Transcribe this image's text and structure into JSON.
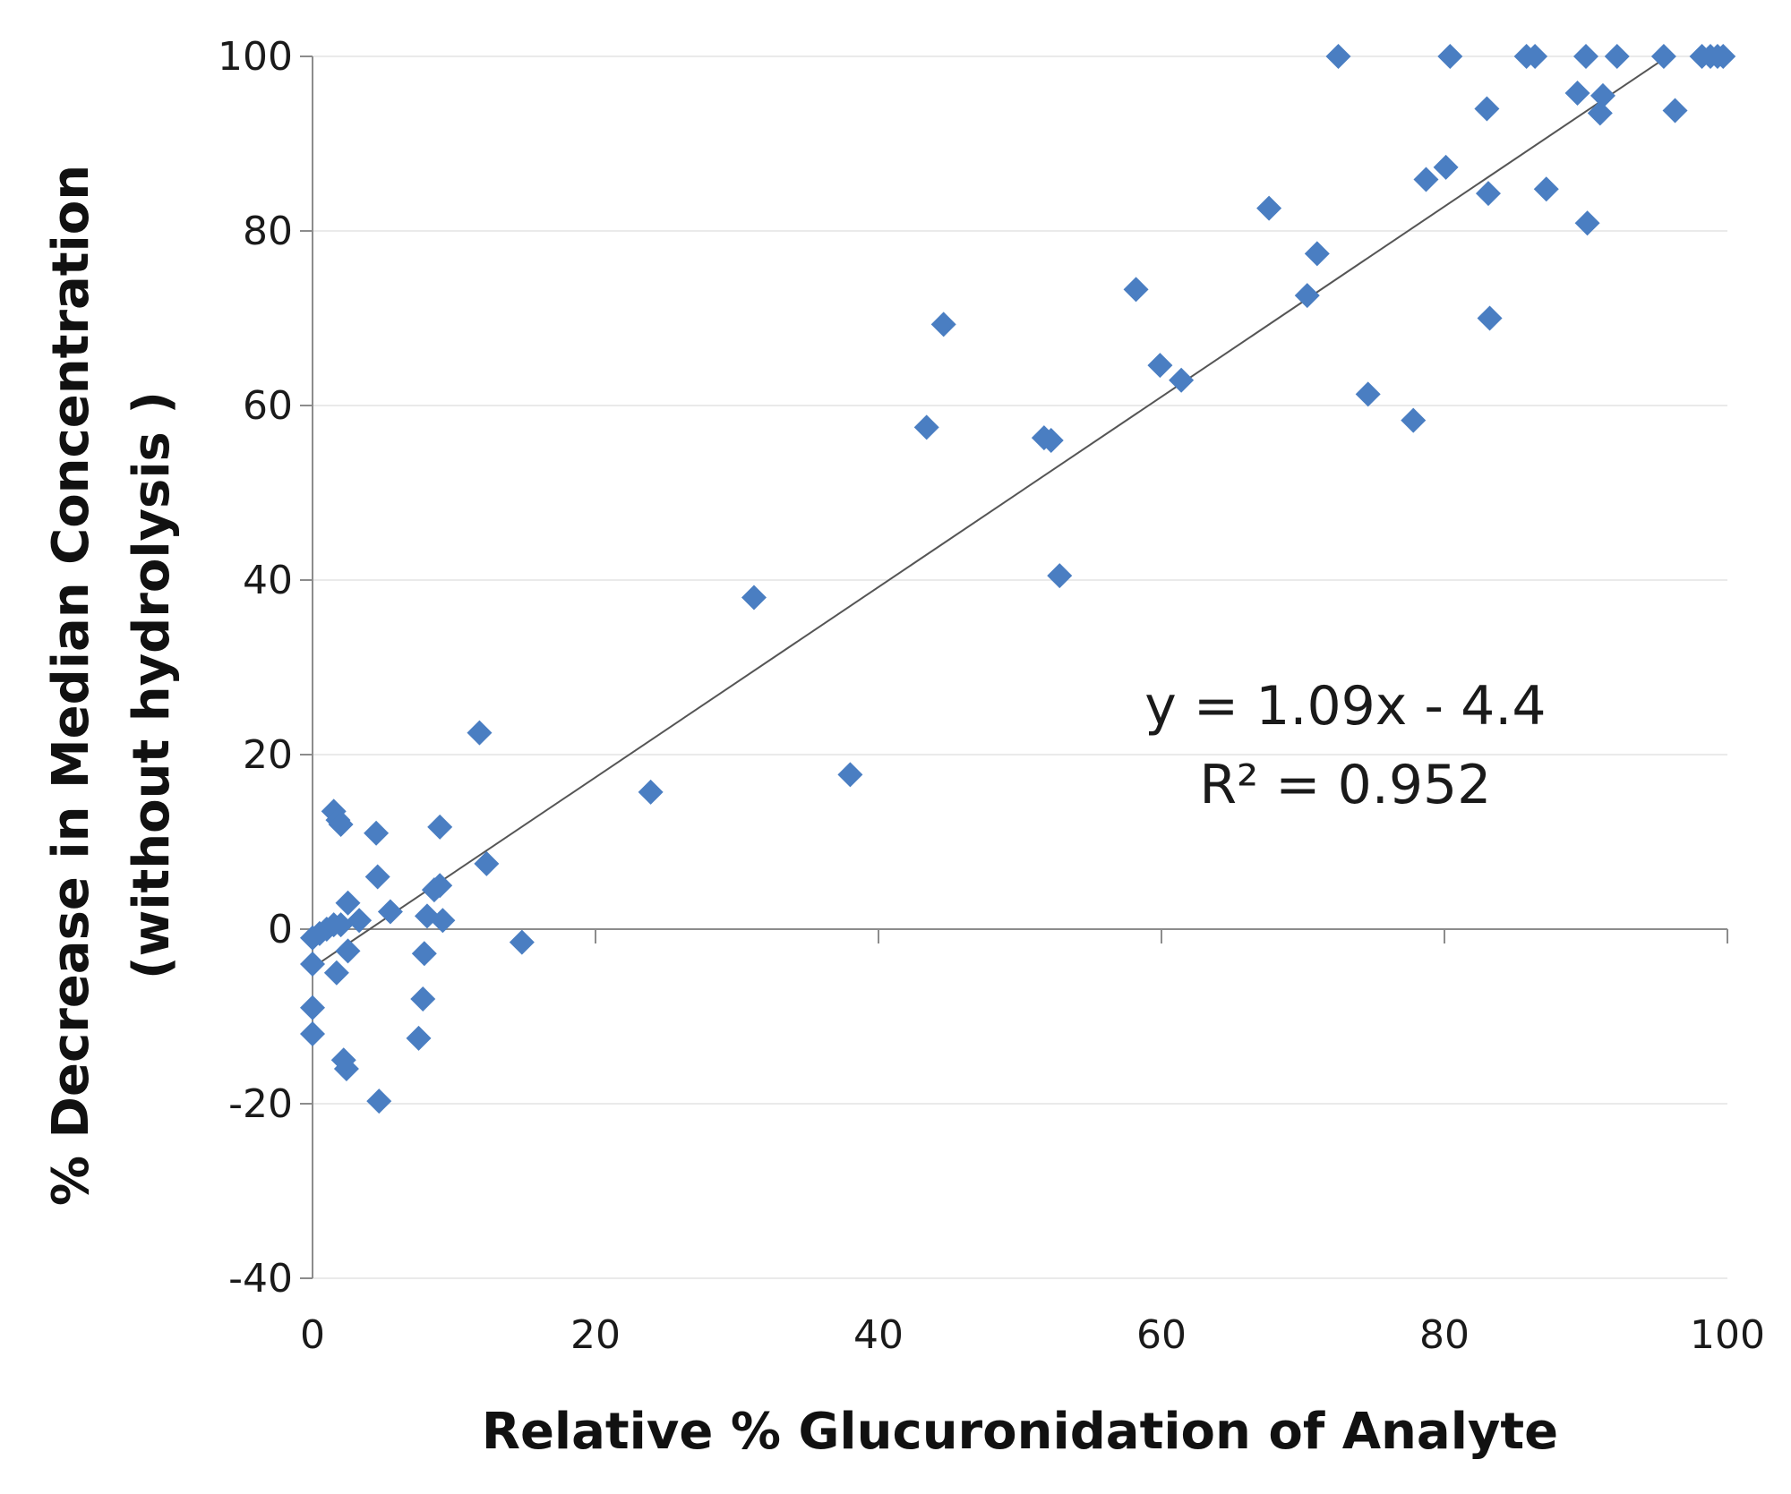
{
  "chart_data": {
    "type": "scatter",
    "xlabel": "Relative % Glucuronidation of Analyte",
    "ylabel": "% Decrease in Median Concentration",
    "ylabel_line2": "(without  hydrolysis )",
    "xlim": [
      0,
      100
    ],
    "ylim": [
      -40,
      100
    ],
    "x_ticks": [
      0,
      20,
      40,
      60,
      80,
      100
    ],
    "y_ticks": [
      -40,
      -20,
      0,
      20,
      40,
      60,
      80,
      100
    ],
    "x_tick_labels": [
      "0",
      "20",
      "40",
      "60",
      "80",
      "100"
    ],
    "y_tick_labels": [
      "-40",
      "-20",
      "0",
      "20",
      "40",
      "60",
      "80",
      "100"
    ],
    "grid": "horizontal",
    "marker": "diamond",
    "marker_color": "#4a7ec2",
    "trendline_color": "#555555",
    "trendline": {
      "slope": 1.09,
      "intercept": -4.4,
      "x_range": [
        0,
        95.5
      ]
    },
    "annotation": {
      "equation": "y = 1.09x - 4.4",
      "r_squared": "R² = 0.952",
      "anchor": [
        73,
        23.5
      ]
    },
    "points": [
      [
        0,
        -1
      ],
      [
        0.5,
        -0.5
      ],
      [
        1,
        0
      ],
      [
        1.5,
        0.5
      ],
      [
        2,
        0.5
      ],
      [
        0,
        -4
      ],
      [
        0,
        -9
      ],
      [
        0,
        -12
      ],
      [
        1.5,
        13.5
      ],
      [
        1.8,
        12.5
      ],
      [
        2,
        12
      ],
      [
        1.7,
        -5
      ],
      [
        2.5,
        -2.5
      ],
      [
        2.5,
        3
      ],
      [
        3.3,
        1
      ],
      [
        2.2,
        -15
      ],
      [
        2.4,
        -16
      ],
      [
        4.5,
        11
      ],
      [
        4.6,
        6
      ],
      [
        5.5,
        2
      ],
      [
        4.7,
        -19.7
      ],
      [
        7.5,
        -12.5
      ],
      [
        7.8,
        -8
      ],
      [
        7.9,
        -2.8
      ],
      [
        8.1,
        1.5
      ],
      [
        8.6,
        4.5
      ],
      [
        9,
        5
      ],
      [
        9,
        11.7
      ],
      [
        9.2,
        1
      ],
      [
        11.8,
        22.5
      ],
      [
        12.3,
        7.5
      ],
      [
        14.8,
        -1.5
      ],
      [
        23.9,
        15.7
      ],
      [
        31.2,
        38
      ],
      [
        38,
        17.7
      ],
      [
        43.4,
        57.5
      ],
      [
        44.6,
        69.3
      ],
      [
        51.7,
        56.3
      ],
      [
        52.2,
        56
      ],
      [
        52.8,
        40.5
      ],
      [
        58.2,
        73.3
      ],
      [
        59.9,
        64.6
      ],
      [
        61.4,
        62.9
      ],
      [
        67.6,
        82.6
      ],
      [
        70.3,
        72.6
      ],
      [
        71,
        77.4
      ],
      [
        72.5,
        100
      ],
      [
        74.6,
        61.3
      ],
      [
        77.8,
        58.3
      ],
      [
        78.7,
        85.9
      ],
      [
        80.1,
        87.3
      ],
      [
        80.4,
        100
      ],
      [
        83,
        94
      ],
      [
        83.1,
        84.3
      ],
      [
        83.2,
        70
      ],
      [
        85.8,
        100
      ],
      [
        86.4,
        100
      ],
      [
        87.2,
        84.8
      ],
      [
        89.4,
        95.8
      ],
      [
        90,
        100
      ],
      [
        90.1,
        80.9
      ],
      [
        91,
        93.5
      ],
      [
        91.2,
        95.5
      ],
      [
        92.2,
        100
      ],
      [
        95.5,
        100
      ],
      [
        96.3,
        93.8
      ],
      [
        98.2,
        100
      ],
      [
        98.8,
        100
      ],
      [
        99.3,
        100
      ],
      [
        99.7,
        100
      ]
    ]
  }
}
